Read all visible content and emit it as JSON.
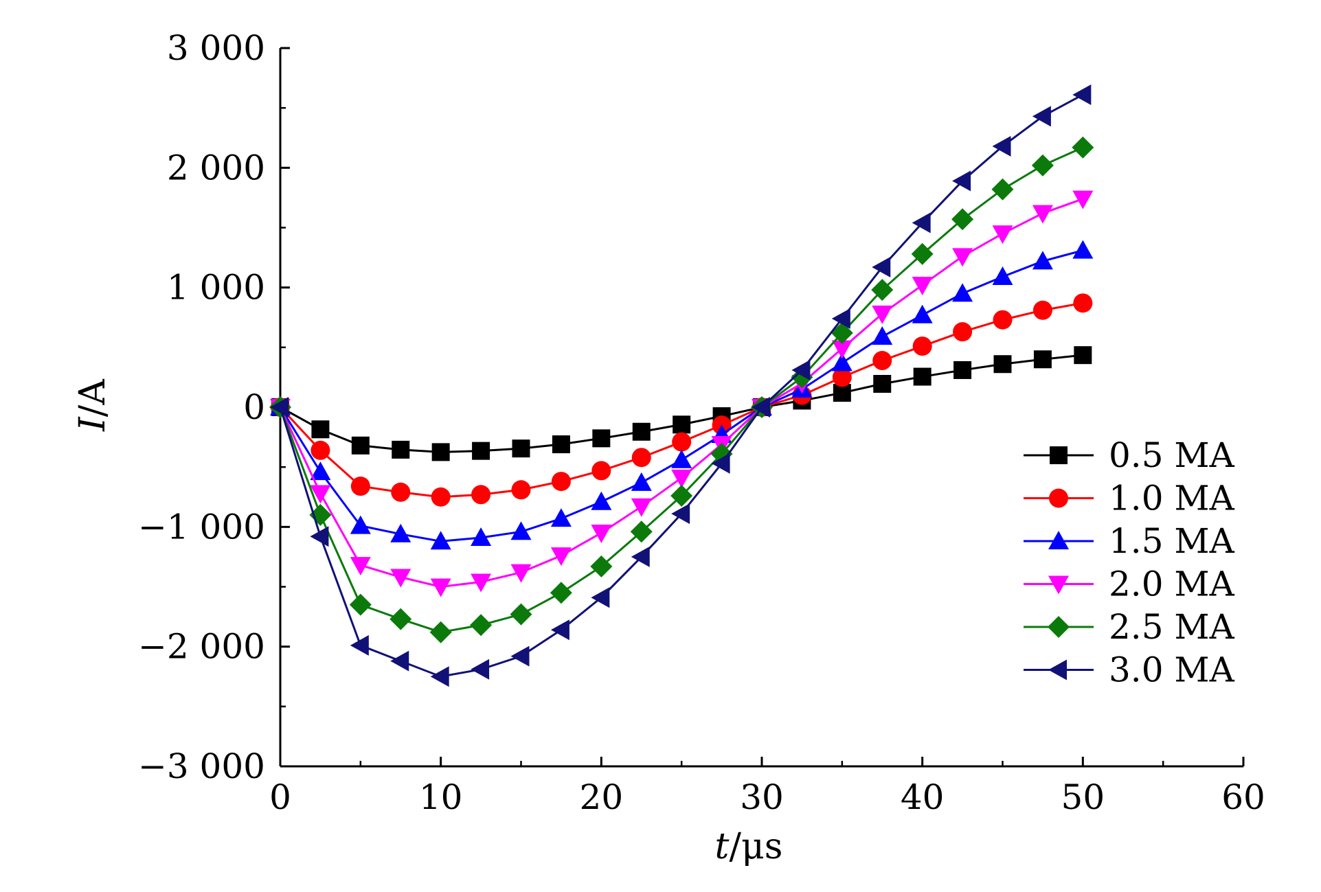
{
  "chart_data": {
    "type": "line",
    "title": "",
    "xlabel_italic": "t",
    "xlabel_unit": "/μs",
    "ylabel_italic": "I",
    "ylabel_unit": "/A",
    "xlim": [
      0,
      60
    ],
    "ylim": [
      -3000,
      3000
    ],
    "x_ticks": [
      0,
      10,
      20,
      30,
      40,
      50,
      60
    ],
    "x_tick_labels": [
      "0",
      "10",
      "20",
      "30",
      "40",
      "50",
      "60"
    ],
    "y_ticks": [
      -3000,
      -2000,
      -1000,
      0,
      1000,
      2000,
      3000
    ],
    "y_tick_labels": [
      "−3 000",
      "−2 000",
      "−1 000",
      "0",
      "1 000",
      "2 000",
      "3 000"
    ],
    "grid": false,
    "legend_position": "right",
    "x": [
      0,
      2.5,
      5,
      7.5,
      10,
      12.5,
      15,
      17.5,
      20,
      22.5,
      25,
      27.5,
      30,
      32.5,
      35,
      37.5,
      40,
      42.5,
      45,
      47.5,
      50
    ],
    "series": [
      {
        "name": "0.5 MA",
        "color": "#000000",
        "marker": "square",
        "values": [
          0,
          -185,
          -320,
          -355,
          -375,
          -365,
          -345,
          -310,
          -260,
          -205,
          -145,
          -75,
          0,
          55,
          120,
          195,
          255,
          310,
          360,
          400,
          435
        ]
      },
      {
        "name": "1.0 MA",
        "color": "#ff0000",
        "marker": "circle",
        "values": [
          0,
          -360,
          -660,
          -710,
          -750,
          -730,
          -690,
          -620,
          -530,
          -420,
          -290,
          -150,
          0,
          100,
          250,
          390,
          510,
          630,
          730,
          810,
          870
        ]
      },
      {
        "name": "1.5 MA",
        "color": "#0000ff",
        "marker": "triangle-up",
        "values": [
          0,
          -540,
          -990,
          -1060,
          -1120,
          -1090,
          -1040,
          -930,
          -790,
          -630,
          -440,
          -230,
          0,
          150,
          370,
          590,
          770,
          950,
          1090,
          1220,
          1310
        ]
      },
      {
        "name": "2.0 MA",
        "color": "#ff00ff",
        "marker": "triangle-down",
        "values": [
          0,
          -720,
          -1320,
          -1420,
          -1500,
          -1460,
          -1380,
          -1240,
          -1050,
          -830,
          -590,
          -310,
          0,
          200,
          490,
          780,
          1020,
          1260,
          1450,
          1620,
          1740
        ]
      },
      {
        "name": "2.5 MA",
        "color": "#0b7a0b",
        "marker": "diamond",
        "values": [
          0,
          -900,
          -1650,
          -1770,
          -1880,
          -1820,
          -1730,
          -1550,
          -1330,
          -1040,
          -740,
          -390,
          0,
          250,
          620,
          980,
          1280,
          1570,
          1820,
          2020,
          2170
        ]
      },
      {
        "name": "3.0 MA",
        "color": "#111177",
        "marker": "triangle-left",
        "values": [
          0,
          -1080,
          -1990,
          -2120,
          -2250,
          -2190,
          -2080,
          -1860,
          -1590,
          -1250,
          -890,
          -470,
          0,
          310,
          740,
          1170,
          1540,
          1890,
          2180,
          2430,
          2610
        ]
      }
    ]
  }
}
